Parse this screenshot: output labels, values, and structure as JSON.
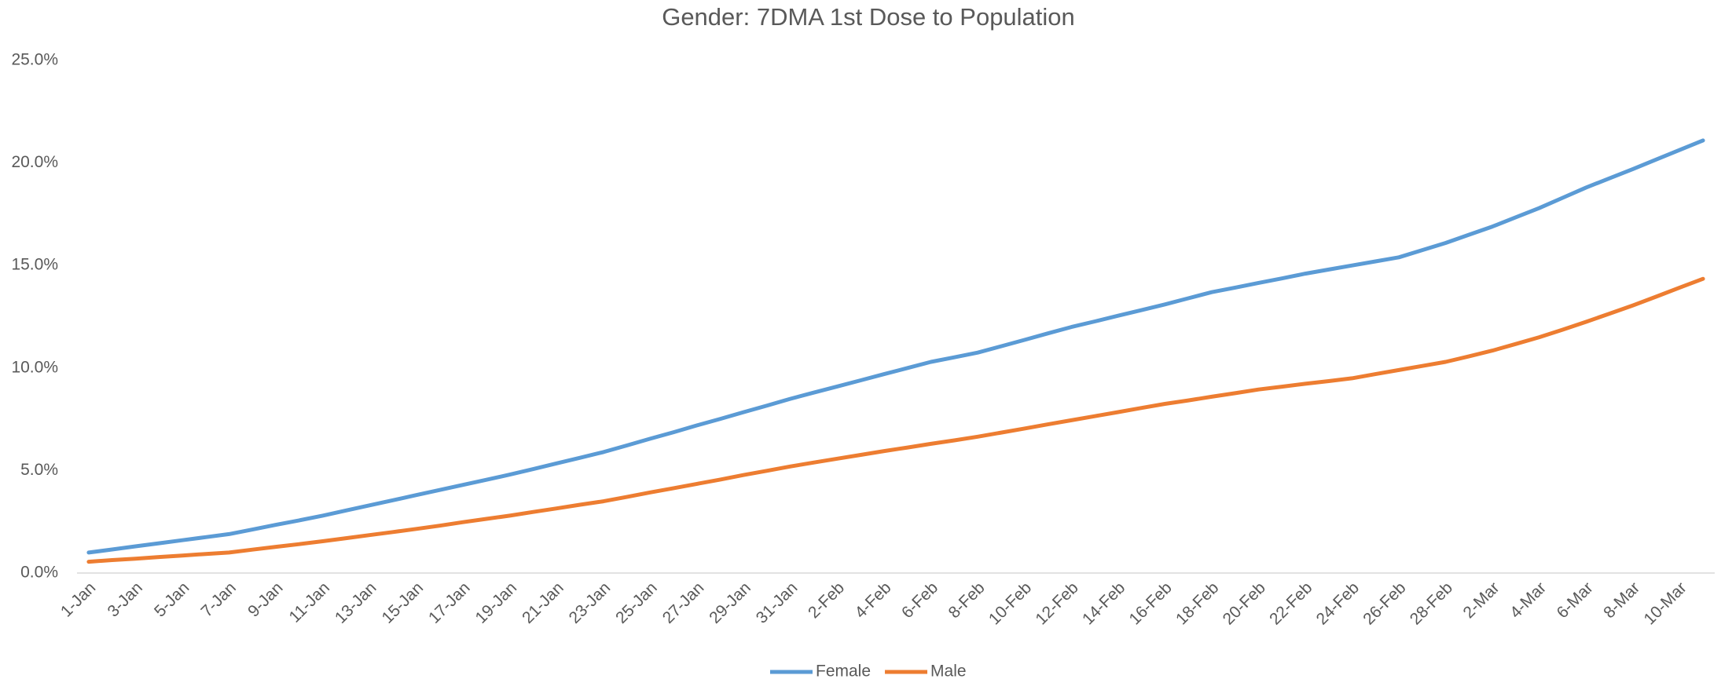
{
  "chart_data": {
    "type": "line",
    "title": "Gender: 7DMA 1st Dose to Population",
    "categories": [
      "1-Jan",
      null,
      "3-Jan",
      null,
      "5-Jan",
      null,
      "7-Jan",
      null,
      "9-Jan",
      null,
      "11-Jan",
      null,
      "13-Jan",
      null,
      "15-Jan",
      null,
      "17-Jan",
      null,
      "19-Jan",
      null,
      "21-Jan",
      null,
      "23-Jan",
      null,
      "25-Jan",
      null,
      "27-Jan",
      null,
      "29-Jan",
      null,
      "31-Jan",
      null,
      "2-Feb",
      null,
      "4-Feb",
      null,
      "6-Feb",
      null,
      "8-Feb",
      null,
      "10-Feb",
      null,
      "12-Feb",
      null,
      "14-Feb",
      null,
      "16-Feb",
      null,
      "18-Feb",
      null,
      "20-Feb",
      null,
      "22-Feb",
      null,
      "24-Feb",
      null,
      "26-Feb",
      null,
      "28-Feb",
      null,
      "2-Mar",
      null,
      "4-Mar",
      null,
      "6-Mar",
      null,
      "8-Mar",
      null,
      "10-Mar",
      null
    ],
    "series": [
      {
        "name": "Female",
        "color": "#5b9bd5",
        "values": [
          1.0,
          1.15,
          1.3,
          1.45,
          1.6,
          1.75,
          1.9,
          2.12,
          2.35,
          2.57,
          2.8,
          3.05,
          3.3,
          3.55,
          3.8,
          4.05,
          4.3,
          4.55,
          4.8,
          5.07,
          5.35,
          5.62,
          5.9,
          6.22,
          6.55,
          6.87,
          7.2,
          7.52,
          7.85,
          8.17,
          8.5,
          8.8,
          9.1,
          9.4,
          9.7,
          10.0,
          10.3,
          10.52,
          10.75,
          11.06,
          11.37,
          11.69,
          12.0,
          12.27,
          12.55,
          12.82,
          13.1,
          13.4,
          13.7,
          13.92,
          14.15,
          14.37,
          14.6,
          14.8,
          15.0,
          15.2,
          15.4,
          15.75,
          16.1,
          16.5,
          16.9,
          17.35,
          17.8,
          18.3,
          18.8,
          19.25,
          19.7,
          20.17,
          20.63,
          21.1
        ]
      },
      {
        "name": "Male",
        "color": "#ed7d31",
        "values": [
          0.55,
          0.63,
          0.7,
          0.78,
          0.85,
          0.93,
          1.0,
          1.14,
          1.28,
          1.41,
          1.55,
          1.7,
          1.85,
          2.0,
          2.15,
          2.31,
          2.48,
          2.64,
          2.8,
          2.98,
          3.15,
          3.33,
          3.5,
          3.71,
          3.93,
          4.14,
          4.35,
          4.56,
          4.78,
          4.99,
          5.2,
          5.39,
          5.58,
          5.76,
          5.95,
          6.12,
          6.3,
          6.47,
          6.65,
          6.85,
          7.05,
          7.25,
          7.45,
          7.65,
          7.85,
          8.05,
          8.25,
          8.42,
          8.6,
          8.77,
          8.95,
          9.09,
          9.23,
          9.36,
          9.5,
          9.7,
          9.9,
          10.1,
          10.3,
          10.57,
          10.85,
          11.17,
          11.5,
          11.87,
          12.25,
          12.65,
          13.05,
          13.48,
          13.92,
          14.35
        ]
      }
    ],
    "ylim": [
      0,
      25
    ],
    "yticks": [
      {
        "value": 0,
        "label": "0.0%"
      },
      {
        "value": 5,
        "label": "5.0%"
      },
      {
        "value": 10,
        "label": "10.0%"
      },
      {
        "value": 15,
        "label": "15.0%"
      },
      {
        "value": 20,
        "label": "20.0%"
      },
      {
        "value": 25,
        "label": "25.0%"
      }
    ],
    "grid": false,
    "legend": "bottom"
  }
}
